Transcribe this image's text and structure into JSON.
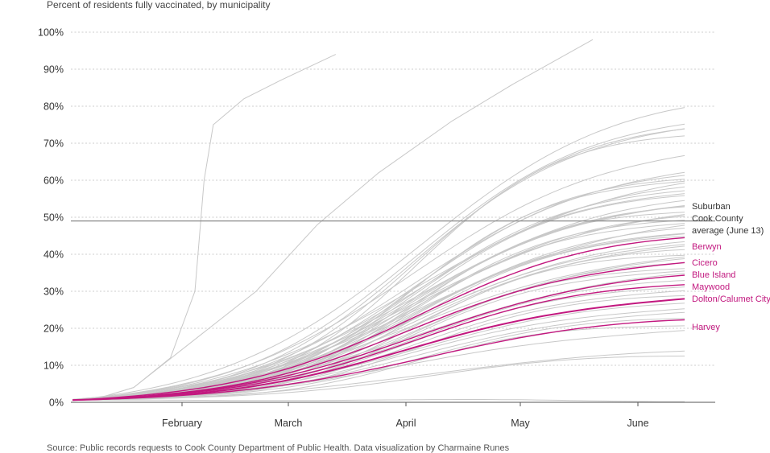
{
  "chart_data": {
    "type": "line",
    "title": "Percent of residents fully vaccinated, by municipality",
    "source": "Source: Public records requests to Cook County Department of Public Health. Data visualization by Charmaine Runes",
    "xlabel": "",
    "ylabel": "",
    "x_ticks": [
      "February",
      "March",
      "April",
      "May",
      "June"
    ],
    "y_ticks": [
      "0%",
      "10%",
      "20%",
      "30%",
      "40%",
      "50%",
      "60%",
      "70%",
      "80%",
      "90%",
      "100%"
    ],
    "ylim": [
      0,
      100
    ],
    "grid": true,
    "reference_line": {
      "value": 49,
      "label_lines": [
        "Suburban",
        "Cook County",
        "average (June 13)"
      ]
    },
    "highlight_color": "#c2187f",
    "background_color": "#c8c8c8",
    "highlighted": [
      {
        "name": "Berwyn",
        "final": 44.5
      },
      {
        "name": "Cicero",
        "final": 38
      },
      {
        "name": "Blue Island",
        "final": 34
      },
      {
        "name": "Maywood",
        "final": 32
      },
      {
        "name": "Dolton/Calumet City",
        "final": 28
      },
      {
        "name": "Harvey",
        "final": 22
      }
    ],
    "background_finals": [
      79.5,
      75.5,
      74,
      73.5,
      72,
      67,
      62,
      61,
      60.5,
      60,
      59,
      58,
      57.5,
      56.5,
      55.5,
      54.5,
      53.5,
      53,
      52.5,
      51.5,
      51,
      50.5,
      50,
      49.5,
      48.5,
      47.5,
      47,
      46,
      45.5,
      44.5,
      43.5,
      43,
      42,
      41,
      40,
      39.5,
      38.5,
      37.5,
      36.5,
      35.5,
      34.5,
      33,
      31.5,
      30,
      28.5,
      27,
      25.5,
      24,
      22.5,
      21,
      19.5,
      13.5,
      12.5,
      0.5
    ]
  }
}
